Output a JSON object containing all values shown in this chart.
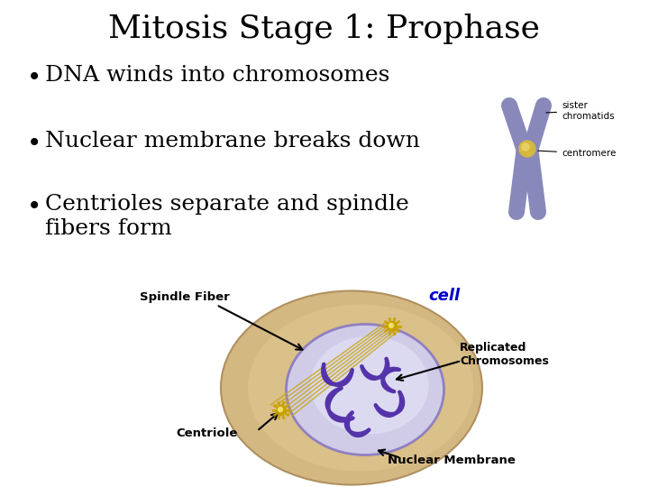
{
  "title": "Mitosis Stage 1: Prophase",
  "bullets": [
    "DNA winds into chromosomes",
    "Nuclear membrane breaks down",
    "Centrioles separate and spindle\nfibers form"
  ],
  "background_color": "#ffffff",
  "title_fontsize": 26,
  "bullet_fontsize": 18,
  "title_color": "#000000",
  "bullet_color": "#000000",
  "label_cell_color": "#0000cc",
  "label_other_color": "#000000",
  "cell_outer_color": "#d4b882",
  "cell_inner_color": "#c8c4e0",
  "nucleus_fill": "#d0cce8",
  "nucleus_edge": "#9080c0",
  "chromosome_color": "#5533aa",
  "centriole_color": "#c8a000",
  "spindle_color": "#c8a820",
  "chromatid_color": "#8888bb",
  "centromere_color": "#d4b840"
}
